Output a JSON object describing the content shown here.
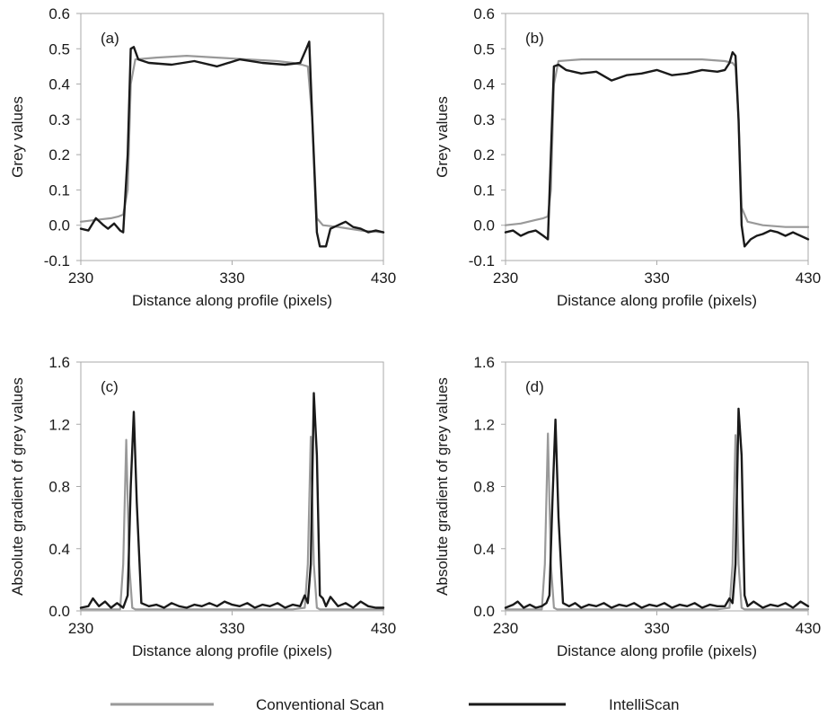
{
  "colors": {
    "conventional": "#999999",
    "intelliscan": "#1a1a1a",
    "frame": "#aaaaaa"
  },
  "legend": [
    {
      "label": "Conventional Scan",
      "color": "#999999"
    },
    {
      "label": "IntelliScan",
      "color": "#1a1a1a"
    }
  ],
  "chart_data": [
    {
      "type": "line",
      "panel": "(a)",
      "xlabel": "Distance along profile (pixels)",
      "ylabel": "Grey values",
      "xlim": [
        230,
        430
      ],
      "ylim": [
        -0.1,
        0.6
      ],
      "xticks": [
        "230",
        "330",
        "430"
      ],
      "yticks": [
        "-0.1",
        "0.0",
        "0.1",
        "0.2",
        "0.3",
        "0.4",
        "0.5",
        "0.6"
      ],
      "grid": false,
      "legend_position": "bottom",
      "series": [
        {
          "name": "Conventional Scan",
          "x": [
            230,
            240,
            250,
            255,
            258,
            261,
            263,
            266,
            280,
            300,
            320,
            340,
            360,
            370,
            376,
            380,
            383,
            386,
            390,
            400,
            415,
            430
          ],
          "y": [
            0.01,
            0.015,
            0.02,
            0.025,
            0.03,
            0.1,
            0.4,
            0.47,
            0.475,
            0.48,
            0.475,
            0.47,
            0.465,
            0.46,
            0.455,
            0.45,
            0.3,
            0.02,
            0.0,
            -0.005,
            -0.015,
            -0.02
          ]
        },
        {
          "name": "IntelliScan",
          "x": [
            230,
            235,
            240,
            245,
            248,
            252,
            256,
            258,
            261,
            263,
            265,
            268,
            275,
            290,
            305,
            320,
            335,
            350,
            365,
            375,
            379,
            381,
            383,
            386,
            388,
            392,
            395,
            400,
            405,
            410,
            415,
            420,
            425,
            430
          ],
          "y": [
            -0.01,
            -0.015,
            0.02,
            0.0,
            -0.01,
            0.005,
            -0.015,
            -0.02,
            0.2,
            0.5,
            0.505,
            0.47,
            0.46,
            0.455,
            0.465,
            0.45,
            0.47,
            0.46,
            0.455,
            0.46,
            0.5,
            0.52,
            0.3,
            -0.02,
            -0.06,
            -0.06,
            -0.01,
            0.0,
            0.01,
            -0.005,
            -0.01,
            -0.02,
            -0.015,
            -0.02
          ]
        }
      ]
    },
    {
      "type": "line",
      "panel": "(b)",
      "xlabel": "Distance along profile (pixels)",
      "ylabel": "Grey values",
      "xlim": [
        230,
        430
      ],
      "ylim": [
        -0.1,
        0.6
      ],
      "xticks": [
        "230",
        "330",
        "430"
      ],
      "yticks": [
        "-0.1",
        "0.0",
        "0.1",
        "0.2",
        "0.3",
        "0.4",
        "0.5",
        "0.6"
      ],
      "grid": false,
      "legend_position": "bottom",
      "series": [
        {
          "name": "Conventional Scan",
          "x": [
            230,
            240,
            250,
            255,
            258,
            260,
            262,
            265,
            280,
            300,
            320,
            340,
            360,
            375,
            380,
            382,
            384,
            386,
            390,
            400,
            415,
            430
          ],
          "y": [
            0.0,
            0.005,
            0.015,
            0.02,
            0.025,
            0.1,
            0.4,
            0.465,
            0.47,
            0.47,
            0.47,
            0.47,
            0.47,
            0.465,
            0.46,
            0.45,
            0.3,
            0.05,
            0.01,
            0.0,
            -0.005,
            -0.005
          ]
        },
        {
          "name": "IntelliScan",
          "x": [
            230,
            235,
            240,
            245,
            250,
            255,
            258,
            260,
            262,
            265,
            270,
            280,
            290,
            300,
            310,
            320,
            330,
            340,
            350,
            360,
            370,
            375,
            378,
            380,
            382,
            384,
            386,
            388,
            392,
            396,
            400,
            405,
            410,
            415,
            420,
            425,
            430
          ],
          "y": [
            -0.02,
            -0.015,
            -0.03,
            -0.02,
            -0.015,
            -0.03,
            -0.04,
            0.2,
            0.45,
            0.455,
            0.44,
            0.43,
            0.435,
            0.41,
            0.425,
            0.43,
            0.44,
            0.425,
            0.43,
            0.44,
            0.435,
            0.44,
            0.46,
            0.49,
            0.48,
            0.3,
            0.0,
            -0.06,
            -0.04,
            -0.03,
            -0.025,
            -0.015,
            -0.02,
            -0.03,
            -0.02,
            -0.03,
            -0.04
          ]
        }
      ]
    },
    {
      "type": "line",
      "panel": "(c)",
      "xlabel": "Distance along profile (pixels)",
      "ylabel": "Absolute gradient of grey values",
      "xlim": [
        230,
        430
      ],
      "ylim": [
        0.0,
        1.6
      ],
      "xticks": [
        "230",
        "330",
        "430"
      ],
      "yticks": [
        "0.0",
        "0.4",
        "0.8",
        "1.2",
        "1.6"
      ],
      "grid": false,
      "legend_position": "bottom",
      "series": [
        {
          "name": "Conventional Scan",
          "x": [
            230,
            250,
            256,
            258,
            260,
            262,
            264,
            266,
            270,
            300,
            340,
            370,
            378,
            380,
            382,
            384,
            386,
            388,
            392,
            410,
            430
          ],
          "y": [
            0.01,
            0.01,
            0.01,
            0.3,
            1.1,
            0.3,
            0.02,
            0.01,
            0.01,
            0.01,
            0.01,
            0.01,
            0.02,
            0.3,
            1.12,
            0.3,
            0.02,
            0.01,
            0.01,
            0.01,
            0.01
          ]
        },
        {
          "name": "IntelliScan",
          "x": [
            230,
            235,
            238,
            242,
            246,
            250,
            254,
            258,
            261,
            263,
            265,
            267,
            270,
            275,
            280,
            285,
            290,
            295,
            300,
            305,
            310,
            315,
            320,
            325,
            330,
            335,
            340,
            345,
            350,
            355,
            360,
            365,
            370,
            375,
            378,
            380,
            382,
            384,
            386,
            388,
            390,
            392,
            395,
            400,
            405,
            410,
            415,
            420,
            425,
            430
          ],
          "y": [
            0.02,
            0.03,
            0.08,
            0.03,
            0.06,
            0.02,
            0.05,
            0.02,
            0.1,
            0.8,
            1.28,
            0.7,
            0.05,
            0.03,
            0.04,
            0.02,
            0.05,
            0.03,
            0.02,
            0.04,
            0.03,
            0.05,
            0.03,
            0.06,
            0.04,
            0.03,
            0.05,
            0.02,
            0.04,
            0.03,
            0.05,
            0.02,
            0.04,
            0.03,
            0.1,
            0.05,
            0.3,
            1.4,
            1.0,
            0.1,
            0.08,
            0.03,
            0.09,
            0.03,
            0.05,
            0.02,
            0.06,
            0.03,
            0.02,
            0.02
          ]
        }
      ]
    },
    {
      "type": "line",
      "panel": "(d)",
      "xlabel": "Distance along profile (pixels)",
      "ylabel": "Absolute gradient of grey values",
      "xlim": [
        230,
        430
      ],
      "ylim": [
        0.0,
        1.6
      ],
      "xticks": [
        "230",
        "330",
        "430"
      ],
      "yticks": [
        "0.0",
        "0.4",
        "0.8",
        "1.2",
        "1.6"
      ],
      "grid": false,
      "legend_position": "bottom",
      "series": [
        {
          "name": "Conventional Scan",
          "x": [
            230,
            250,
            254,
            256,
            258,
            260,
            262,
            264,
            268,
            300,
            340,
            370,
            378,
            380,
            382,
            384,
            386,
            388,
            392,
            410,
            430
          ],
          "y": [
            0.01,
            0.01,
            0.01,
            0.3,
            1.14,
            0.3,
            0.02,
            0.01,
            0.01,
            0.01,
            0.01,
            0.01,
            0.02,
            0.3,
            1.13,
            0.3,
            0.02,
            0.01,
            0.01,
            0.01,
            0.01
          ]
        },
        {
          "name": "IntelliScan",
          "x": [
            230,
            235,
            238,
            242,
            246,
            250,
            254,
            257,
            259,
            261,
            263,
            265,
            268,
            272,
            276,
            280,
            285,
            290,
            295,
            300,
            305,
            310,
            315,
            320,
            325,
            330,
            335,
            340,
            345,
            350,
            355,
            360,
            365,
            370,
            375,
            378,
            380,
            382,
            384,
            386,
            388,
            390,
            394,
            400,
            405,
            410,
            415,
            420,
            425,
            430
          ],
          "y": [
            0.02,
            0.04,
            0.06,
            0.02,
            0.04,
            0.02,
            0.03,
            0.05,
            0.1,
            0.7,
            1.23,
            0.6,
            0.05,
            0.03,
            0.05,
            0.02,
            0.04,
            0.03,
            0.05,
            0.02,
            0.04,
            0.03,
            0.05,
            0.02,
            0.04,
            0.03,
            0.05,
            0.02,
            0.04,
            0.03,
            0.05,
            0.02,
            0.04,
            0.03,
            0.03,
            0.08,
            0.05,
            0.3,
            1.3,
            1.0,
            0.1,
            0.03,
            0.06,
            0.02,
            0.04,
            0.03,
            0.05,
            0.02,
            0.06,
            0.03
          ]
        }
      ]
    }
  ]
}
